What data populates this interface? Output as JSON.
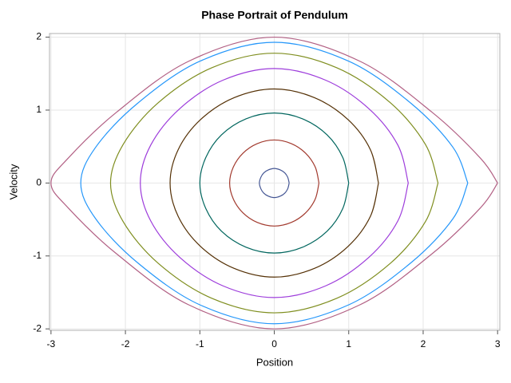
{
  "chart_data": {
    "type": "line",
    "title": "Phase Portrait of Pendulum",
    "x_label": "Position",
    "y_label": "Velocity",
    "xlim": [
      -3.02,
      3.03
    ],
    "ylim": [
      -2.02,
      2.05
    ],
    "xticks": [
      -3,
      -2,
      -1,
      0,
      1,
      2,
      3
    ],
    "yticks": [
      -2,
      -1,
      0,
      1,
      2
    ],
    "grid": true,
    "series": [
      {
        "color": "#445694",
        "x": [
          0.2,
          0.18,
          0.14,
          0.08,
          0,
          -0.08,
          -0.14,
          -0.18,
          -0.2,
          -0.18,
          -0.14,
          -0.08,
          0,
          0.08,
          0.14,
          0.18,
          0.2
        ],
        "values": [
          0,
          0.08,
          0.14,
          0.18,
          0.2,
          0.18,
          0.14,
          0.08,
          0,
          -0.08,
          -0.14,
          -0.18,
          -0.2,
          -0.18,
          -0.14,
          -0.08,
          0
        ]
      },
      {
        "color": "#a23a2e",
        "x": [
          0.6,
          0.55,
          0.42,
          0.23,
          0,
          -0.23,
          -0.42,
          -0.55,
          -0.6,
          -0.55,
          -0.42,
          -0.23,
          0,
          0.23,
          0.42,
          0.55,
          0.6
        ],
        "values": [
          0,
          0.22,
          0.41,
          0.54,
          0.59,
          0.54,
          0.41,
          0.22,
          0,
          -0.22,
          -0.41,
          -0.54,
          -0.59,
          -0.54,
          -0.41,
          -0.22,
          0
        ]
      },
      {
        "color": "#01665e",
        "x": [
          1,
          0.92,
          0.71,
          0.38,
          0,
          -0.38,
          -0.71,
          -0.92,
          -1,
          -0.92,
          -0.71,
          -0.38,
          0,
          0.38,
          0.71,
          0.92,
          1
        ],
        "values": [
          0,
          0.35,
          0.66,
          0.88,
          0.96,
          0.88,
          0.66,
          0.35,
          0,
          -0.35,
          -0.66,
          -0.88,
          -0.96,
          -0.88,
          -0.66,
          -0.35,
          0
        ]
      },
      {
        "color": "#543005",
        "x": [
          1.4,
          1.29,
          0.99,
          0.54,
          0,
          -0.54,
          -0.99,
          -1.29,
          -1.4,
          -1.29,
          -0.99,
          -0.54,
          0,
          0.54,
          0.99,
          1.29,
          1.4
        ],
        "values": [
          0,
          0.46,
          0.87,
          1.17,
          1.29,
          1.17,
          0.87,
          0.46,
          0,
          -0.46,
          -0.87,
          -1.17,
          -1.29,
          -1.17,
          -0.87,
          -0.46,
          0
        ]
      },
      {
        "color": "#9d3cdb",
        "x": [
          1.8,
          1.66,
          1.27,
          0.69,
          0,
          -0.69,
          -1.27,
          -1.66,
          -1.8,
          -1.66,
          -1.27,
          -0.69,
          0,
          0.69,
          1.27,
          1.66,
          1.8
        ],
        "values": [
          0,
          0.52,
          1.02,
          1.41,
          1.57,
          1.41,
          1.02,
          0.52,
          0,
          -0.52,
          -1.02,
          -1.41,
          -1.57,
          -1.41,
          -1.02,
          -0.52,
          0
        ]
      },
      {
        "color": "#7f8e1f",
        "x": [
          2.2,
          2.03,
          1.56,
          0.84,
          0,
          -0.84,
          -1.56,
          -2.03,
          -2.2,
          -2.03,
          -1.56,
          -0.84,
          0,
          0.84,
          1.56,
          2.03,
          2.2
        ],
        "values": [
          0,
          0.53,
          1.1,
          1.58,
          1.78,
          1.58,
          1.1,
          0.53,
          0,
          -0.53,
          -1.1,
          -1.58,
          -1.78,
          -1.58,
          -1.1,
          -0.53,
          0
        ]
      },
      {
        "color": "#2597fa",
        "x": [
          2.6,
          2.4,
          1.84,
          1,
          0,
          -1,
          -1.84,
          -2.4,
          -2.6,
          -2.4,
          -1.84,
          -1,
          0,
          1,
          1.84,
          2.4,
          2.6
        ],
        "values": [
          0,
          0.49,
          1.09,
          1.67,
          1.93,
          1.67,
          1.09,
          0.49,
          0,
          -0.49,
          -1.09,
          -1.67,
          -1.93,
          -1.67,
          -1.09,
          -0.49,
          0
        ]
      },
      {
        "color": "#b26084",
        "x": [
          3,
          2.77,
          2.12,
          1.15,
          0,
          -1.15,
          -2.12,
          -2.77,
          -3,
          -2.77,
          -2.12,
          -1.15,
          0,
          1.15,
          2.12,
          2.77,
          3
        ],
        "values": [
          0,
          0.34,
          0.97,
          1.67,
          2,
          1.67,
          0.97,
          0.34,
          0,
          -0.34,
          -0.97,
          -1.67,
          -2,
          -1.67,
          -0.97,
          -0.34,
          0
        ]
      }
    ]
  }
}
